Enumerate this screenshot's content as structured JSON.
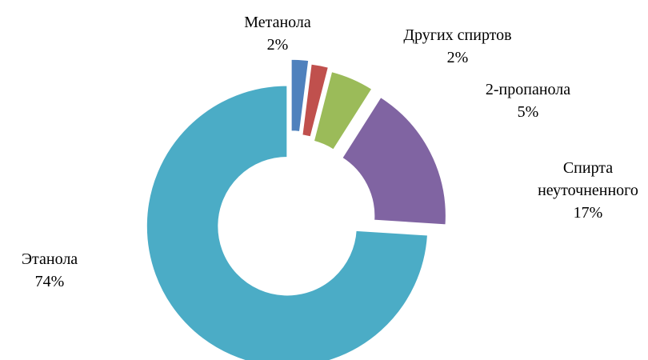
{
  "chart_data": {
    "type": "donut",
    "categories": [
      "Метанола",
      "Других спиртов",
      "2-пропанола",
      "Спирта неуточненного",
      "Этанола"
    ],
    "values": [
      2,
      2,
      5,
      17,
      74
    ],
    "value_labels": [
      "2%",
      "2%",
      "5%",
      "17%",
      "74%"
    ],
    "colors": [
      "#4f81bd",
      "#c0504d",
      "#9bbb59",
      "#8064a2",
      "#4bacc6"
    ]
  }
}
